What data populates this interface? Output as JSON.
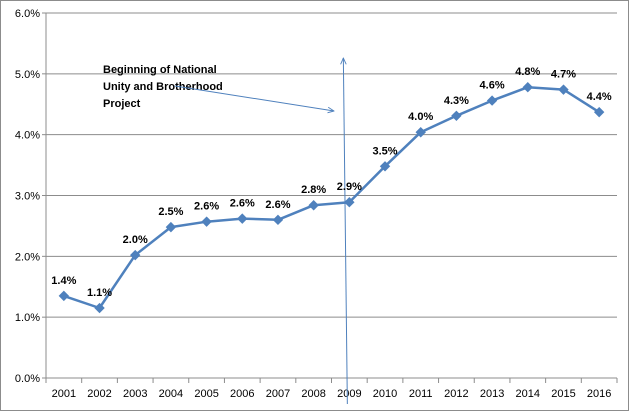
{
  "chart_data": {
    "type": "line",
    "categories": [
      "2001",
      "2002",
      "2003",
      "2004",
      "2005",
      "2006",
      "2007",
      "2008",
      "2009",
      "2010",
      "2011",
      "2012",
      "2013",
      "2014",
      "2015",
      "2016"
    ],
    "series": [
      {
        "values": [
          1.35,
          1.15,
          2.02,
          2.48,
          2.57,
          2.62,
          2.6,
          2.84,
          2.89,
          3.48,
          4.04,
          4.31,
          4.56,
          4.78,
          4.74,
          4.37
        ],
        "labels": [
          "1.4%",
          "1.1%",
          "2.0%",
          "2.5%",
          "2.6%",
          "2.6%",
          "2.6%",
          "2.8%",
          "2.9%",
          "3.5%",
          "4.0%",
          "4.3%",
          "4.6%",
          "4.8%",
          "4.7%",
          "4.4%"
        ],
        "color": "#4f81bd"
      }
    ],
    "yticks": [
      "0.0%",
      "1.0%",
      "2.0%",
      "3.0%",
      "4.0%",
      "5.0%",
      "6.0%"
    ],
    "ylim": [
      0,
      6
    ],
    "grid": true,
    "annotation": {
      "lines": [
        "Beginning  of National",
        "Unity and Brotherhood",
        "Project"
      ],
      "marker_category": "2009"
    },
    "title": "",
    "xlabel": "",
    "ylabel": ""
  }
}
